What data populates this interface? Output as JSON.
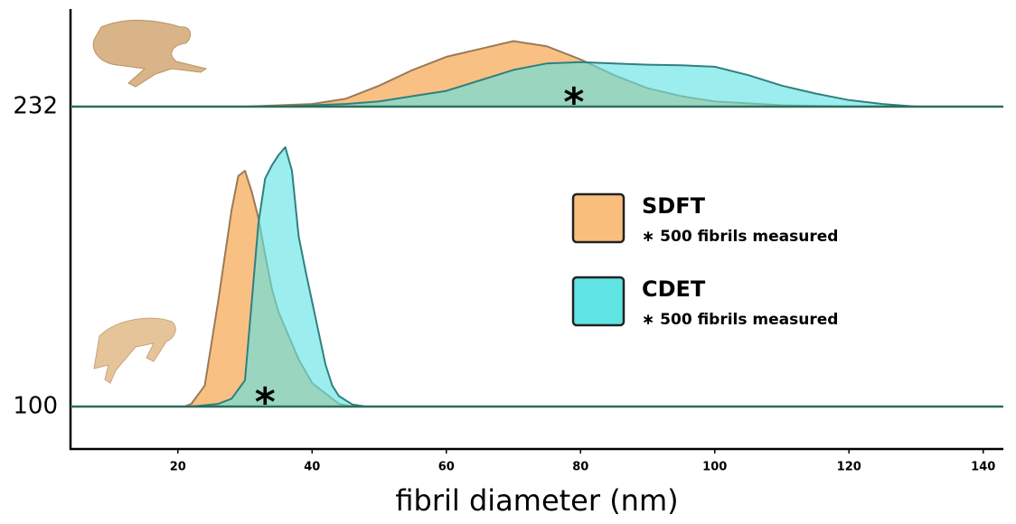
{
  "chart_data": {
    "type": "ridgeline",
    "xlabel": "fibril diameter (nm)",
    "xlim": [
      4,
      143
    ],
    "xticks": [
      20,
      40,
      60,
      80,
      100,
      120,
      140
    ],
    "categories": [
      "232",
      "100"
    ],
    "annotations": [
      {
        "text": "*",
        "ridge": 0,
        "x": 79
      },
      {
        "text": "*",
        "ridge": 1,
        "x": 33
      }
    ],
    "series": [
      {
        "name": "SDFT",
        "note": "∗ 500 fibrils measured",
        "color": "#f9bd7c",
        "edge": "#9a7a58",
        "ridges": [
          {
            "x": [
              30,
              40,
              45,
              50,
              55,
              60,
              65,
              70,
              75,
              80,
              85,
              90,
              95,
              100,
              110,
              120
            ],
            "values": [
              0,
              0.01,
              0.03,
              0.08,
              0.14,
              0.19,
              0.22,
              0.25,
              0.23,
              0.18,
              0.12,
              0.07,
              0.04,
              0.02,
              0.005,
              0
            ]
          },
          {
            "x": [
              21,
              22,
              24,
              26,
              28,
              29,
              30,
              31,
              32,
              33,
              34,
              35,
              36,
              38,
              40,
              42,
              44,
              46
            ],
            "values": [
              0,
              0.01,
              0.08,
              0.4,
              0.75,
              0.88,
              0.9,
              0.82,
              0.72,
              0.58,
              0.45,
              0.36,
              0.3,
              0.18,
              0.09,
              0.05,
              0.01,
              0
            ]
          }
        ]
      },
      {
        "name": "CDET",
        "note": "∗ 500 fibrils measured",
        "color": "#5fe3e3",
        "edge": "#2f8080",
        "ridges": [
          {
            "x": [
              35,
              40,
              45,
              50,
              55,
              60,
              65,
              70,
              75,
              80,
              85,
              90,
              95,
              100,
              105,
              110,
              115,
              120,
              125,
              130
            ],
            "values": [
              0,
              0.005,
              0.01,
              0.02,
              0.04,
              0.06,
              0.1,
              0.14,
              0.165,
              0.17,
              0.165,
              0.16,
              0.158,
              0.152,
              0.12,
              0.08,
              0.05,
              0.025,
              0.01,
              0
            ]
          },
          {
            "x": [
              22,
              26,
              28,
              30,
              31,
              32,
              33,
              34,
              35,
              36,
              37,
              38,
              39,
              40,
              41,
              42,
              43,
              44,
              46,
              48
            ],
            "values": [
              0,
              0.01,
              0.03,
              0.1,
              0.4,
              0.7,
              0.87,
              0.92,
              0.96,
              0.99,
              0.9,
              0.65,
              0.52,
              0.4,
              0.28,
              0.16,
              0.08,
              0.04,
              0.008,
              0
            ]
          }
        ]
      }
    ]
  }
}
